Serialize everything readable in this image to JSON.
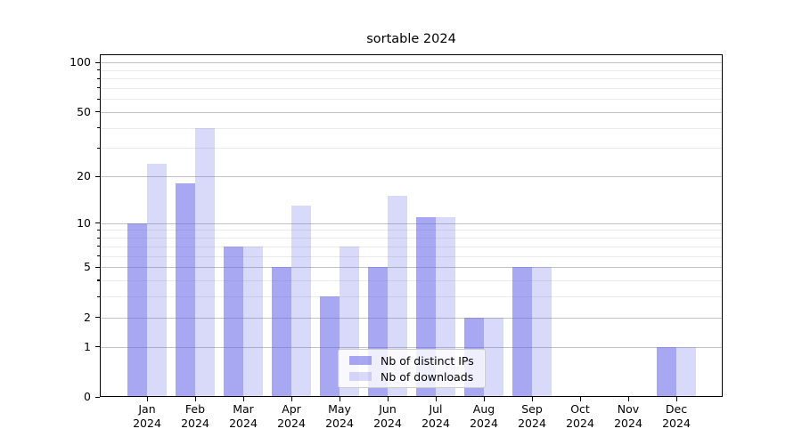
{
  "chart_data": {
    "type": "bar",
    "title": "sortable 2024",
    "categories": [
      "Jan",
      "Feb",
      "Mar",
      "Apr",
      "May",
      "Jun",
      "Jul",
      "Aug",
      "Sep",
      "Oct",
      "Nov",
      "Dec"
    ],
    "category_second_line": "2024",
    "series": [
      {
        "name": "Nb of distinct IPs",
        "color": "rgba(102,102,232,0.57)",
        "values": [
          10,
          18,
          7,
          5,
          3,
          5,
          11,
          2,
          5,
          0,
          0,
          1
        ]
      },
      {
        "name": "Nb of downloads",
        "color": "rgba(102,102,232,0.25)",
        "values": [
          24,
          40,
          7,
          13,
          7,
          15,
          11,
          2,
          5,
          0,
          0,
          1
        ]
      }
    ],
    "xlabel": "",
    "ylabel": "",
    "y_scale": "log10(1+x)",
    "y_major_ticks": [
      0,
      1,
      2,
      5,
      10,
      20,
      50,
      100
    ],
    "y_minor_ticks": [
      3,
      4,
      6,
      7,
      8,
      9,
      30,
      40,
      60,
      70,
      80,
      90
    ],
    "ylim": [
      0,
      112
    ],
    "grid": true,
    "legend_position": "lower-center-inside",
    "background_color": "#ffffff",
    "major_grid_color": "#c2c2c2",
    "minor_grid_color": "#eaeaea"
  }
}
